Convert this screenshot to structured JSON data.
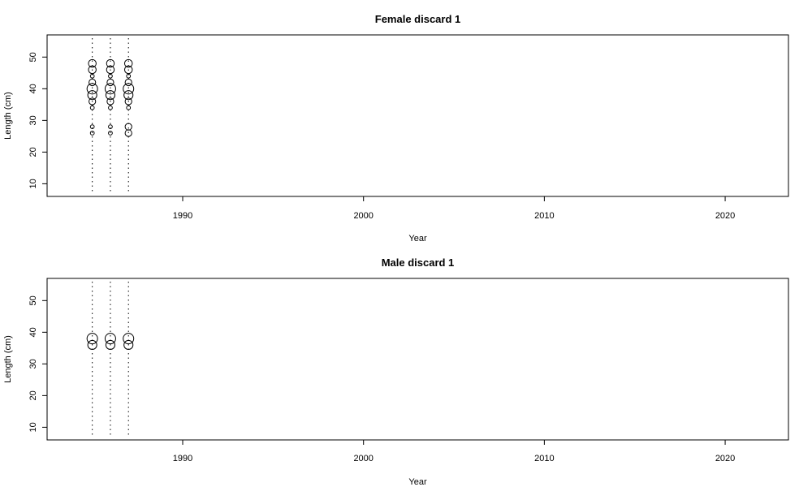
{
  "chart_data": [
    {
      "type": "bubble",
      "title": "Female discard 1",
      "xlabel": "Year",
      "ylabel": "Length (cm)",
      "xlim": [
        1982.5,
        2023.5
      ],
      "ylim": [
        6,
        57
      ],
      "xticks": [
        1990,
        2000,
        2010,
        2020
      ],
      "yticks": [
        10,
        20,
        30,
        40,
        50
      ],
      "sample_years": [
        1985,
        1986,
        1987
      ],
      "bubbles": [
        {
          "year": 1985,
          "length": 26,
          "size": 0.1
        },
        {
          "year": 1985,
          "length": 28,
          "size": 0.1
        },
        {
          "year": 1985,
          "length": 34,
          "size": 0.1
        },
        {
          "year": 1985,
          "length": 36,
          "size": 0.3
        },
        {
          "year": 1985,
          "length": 38,
          "size": 0.55
        },
        {
          "year": 1985,
          "length": 40,
          "size": 0.75
        },
        {
          "year": 1985,
          "length": 42,
          "size": 0.3
        },
        {
          "year": 1985,
          "length": 44,
          "size": 0.1
        },
        {
          "year": 1985,
          "length": 46,
          "size": 0.4
        },
        {
          "year": 1985,
          "length": 48,
          "size": 0.4
        },
        {
          "year": 1986,
          "length": 26,
          "size": 0.1
        },
        {
          "year": 1986,
          "length": 28,
          "size": 0.1
        },
        {
          "year": 1986,
          "length": 34,
          "size": 0.1
        },
        {
          "year": 1986,
          "length": 36,
          "size": 0.3
        },
        {
          "year": 1986,
          "length": 38,
          "size": 0.55
        },
        {
          "year": 1986,
          "length": 40,
          "size": 0.75
        },
        {
          "year": 1986,
          "length": 42,
          "size": 0.3
        },
        {
          "year": 1986,
          "length": 44,
          "size": 0.1
        },
        {
          "year": 1986,
          "length": 46,
          "size": 0.4
        },
        {
          "year": 1986,
          "length": 48,
          "size": 0.4
        },
        {
          "year": 1987,
          "length": 26,
          "size": 0.3
        },
        {
          "year": 1987,
          "length": 28,
          "size": 0.3
        },
        {
          "year": 1987,
          "length": 34,
          "size": 0.1
        },
        {
          "year": 1987,
          "length": 36,
          "size": 0.3
        },
        {
          "year": 1987,
          "length": 38,
          "size": 0.55
        },
        {
          "year": 1987,
          "length": 40,
          "size": 0.75
        },
        {
          "year": 1987,
          "length": 42,
          "size": 0.3
        },
        {
          "year": 1987,
          "length": 44,
          "size": 0.1
        },
        {
          "year": 1987,
          "length": 46,
          "size": 0.4
        },
        {
          "year": 1987,
          "length": 48,
          "size": 0.4
        }
      ]
    },
    {
      "type": "bubble",
      "title": "Male discard 1",
      "xlabel": "Year",
      "ylabel": "Length (cm)",
      "xlim": [
        1982.5,
        2023.5
      ],
      "ylim": [
        6,
        57
      ],
      "xticks": [
        1990,
        2000,
        2010,
        2020
      ],
      "yticks": [
        10,
        20,
        30,
        40,
        50
      ],
      "sample_years": [
        1985,
        1986,
        1987
      ],
      "bubbles": [
        {
          "year": 1985,
          "length": 36,
          "size": 0.55
        },
        {
          "year": 1985,
          "length": 38,
          "size": 0.75
        },
        {
          "year": 1986,
          "length": 36,
          "size": 0.55
        },
        {
          "year": 1986,
          "length": 38,
          "size": 0.75
        },
        {
          "year": 1987,
          "length": 36,
          "size": 0.55
        },
        {
          "year": 1987,
          "length": 38,
          "size": 0.75
        }
      ]
    }
  ]
}
